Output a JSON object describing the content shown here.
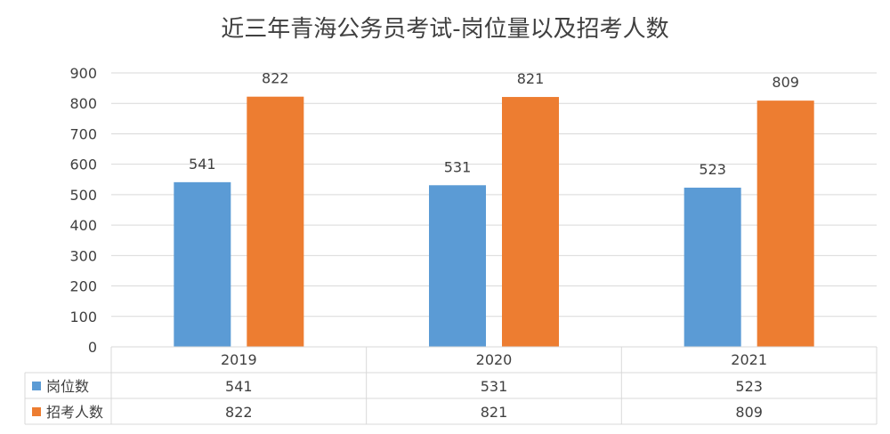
{
  "chart_data": {
    "type": "bar",
    "title": "近三年青海公务员考试-岗位量以及招考人数",
    "categories": [
      "2019",
      "2020",
      "2021"
    ],
    "series": [
      {
        "name": "岗位数",
        "values": [
          541,
          531,
          523
        ],
        "color": "#5B9BD5"
      },
      {
        "name": "招考人数",
        "values": [
          822,
          821,
          809
        ],
        "color": "#ED7D31"
      }
    ],
    "ylim": [
      0,
      900
    ],
    "yticks": [
      0,
      100,
      200,
      300,
      400,
      500,
      600,
      700,
      800,
      900
    ],
    "grid": true,
    "legend": "data-table-bottom",
    "data_labels": true
  }
}
